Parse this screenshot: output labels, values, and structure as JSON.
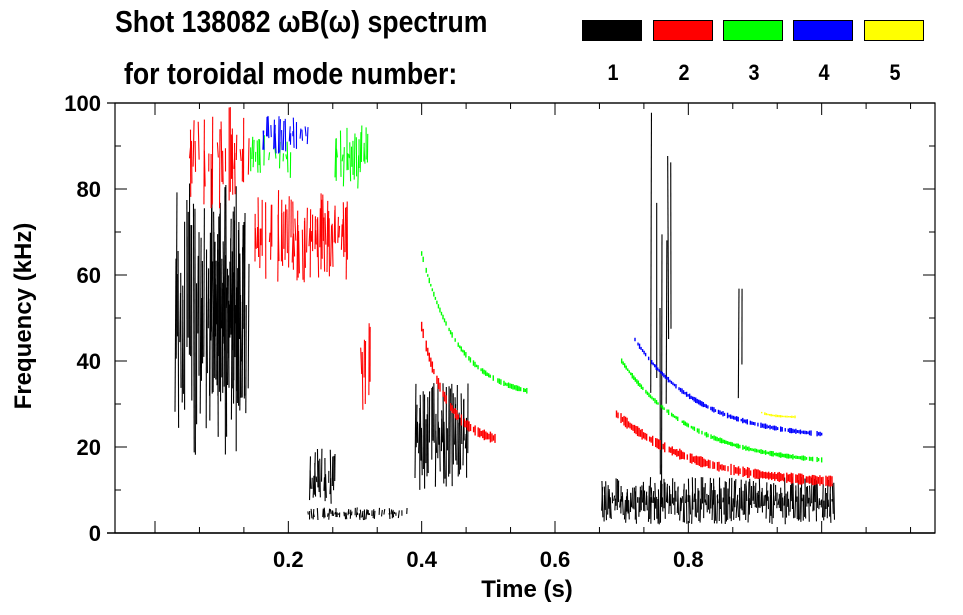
{
  "chart_data": {
    "type": "heatmap",
    "title_line1": "Shot 138082 ωB(ω) spectrum",
    "title_line2": "for toroidal mode number:",
    "xlabel": "Time (s)",
    "ylabel": "Frequency (kHz)",
    "xlim": [
      -0.06,
      1.17
    ],
    "ylim": [
      0,
      100
    ],
    "xticks": [
      "0.2",
      "0.4",
      "0.6",
      "0.8"
    ],
    "xtick_values": [
      0.2,
      0.4,
      0.6,
      0.8
    ],
    "yticks": [
      "0",
      "20",
      "40",
      "60",
      "80",
      "100"
    ],
    "ytick_values": [
      0,
      20,
      40,
      60,
      80,
      100
    ],
    "legend": [
      {
        "label": "1",
        "color": "#000000"
      },
      {
        "label": "2",
        "color": "#ff0000"
      },
      {
        "label": "3",
        "color": "#00ff00"
      },
      {
        "label": "4",
        "color": "#0000ff"
      },
      {
        "label": "5",
        "color": "#ffff00"
      }
    ],
    "series": [
      {
        "name": "1",
        "color": "#000000",
        "features": [
          {
            "type": "blob",
            "t": [
              0.03,
              0.14
            ],
            "f": [
              18,
              85
            ],
            "density": 0.9
          },
          {
            "type": "blob",
            "t": [
              0.08,
              0.135
            ],
            "f": [
              30,
              75
            ],
            "density": 1.0
          },
          {
            "type": "blob",
            "t": [
              0.23,
              0.38
            ],
            "f": [
              3,
              6
            ],
            "density": 0.6
          },
          {
            "type": "blob",
            "t": [
              0.23,
              0.27
            ],
            "f": [
              5,
              20
            ],
            "density": 0.8
          },
          {
            "type": "blob",
            "t": [
              0.39,
              0.47
            ],
            "f": [
              10,
              35
            ],
            "density": 0.9
          },
          {
            "type": "blob",
            "t": [
              0.67,
              1.02
            ],
            "f": [
              2,
              13
            ],
            "density": 1.0
          },
          {
            "type": "blob",
            "t": [
              0.74,
              0.76
            ],
            "f": [
              0,
              100
            ],
            "density": 0.15
          },
          {
            "type": "blob",
            "t": [
              0.765,
              0.775
            ],
            "f": [
              30,
              100
            ],
            "density": 0.15
          },
          {
            "type": "blob",
            "t": [
              0.875,
              0.885
            ],
            "f": [
              20,
              78
            ],
            "density": 0.3
          }
        ]
      },
      {
        "name": "2",
        "color": "#ff0000",
        "features": [
          {
            "type": "blob",
            "t": [
              0.05,
              0.14
            ],
            "f": [
              75,
              100
            ],
            "density": 0.5
          },
          {
            "type": "blob",
            "t": [
              0.15,
              0.29
            ],
            "f": [
              58,
              80
            ],
            "density": 0.7
          },
          {
            "type": "blob",
            "t": [
              0.31,
              0.33
            ],
            "f": [
              24,
              50
            ],
            "density": 0.7
          },
          {
            "type": "chirp",
            "t": [
              0.4,
              0.51
            ],
            "f": [
              48,
              22
            ],
            "width": 4
          },
          {
            "type": "chirp",
            "t": [
              0.69,
              1.02
            ],
            "f": [
              28,
              12
            ],
            "width": 4
          }
        ]
      },
      {
        "name": "3",
        "color": "#00ff00",
        "features": [
          {
            "type": "blob",
            "t": [
              0.14,
              0.21
            ],
            "f": [
              82,
              93
            ],
            "density": 0.4
          },
          {
            "type": "blob",
            "t": [
              0.27,
              0.32
            ],
            "f": [
              80,
              95
            ],
            "density": 0.8
          },
          {
            "type": "chirp",
            "t": [
              0.4,
              0.56
            ],
            "f": [
              65,
              33
            ],
            "width": 2
          },
          {
            "type": "chirp",
            "t": [
              0.7,
              1.0
            ],
            "f": [
              40,
              17
            ],
            "width": 2
          }
        ]
      },
      {
        "name": "4",
        "color": "#0000ff",
        "features": [
          {
            "type": "blob",
            "t": [
              0.16,
              0.23
            ],
            "f": [
              88,
              97
            ],
            "density": 0.5
          },
          {
            "type": "chirp",
            "t": [
              0.72,
              1.0
            ],
            "f": [
              45,
              23
            ],
            "width": 2
          }
        ]
      },
      {
        "name": "5",
        "color": "#ffff00",
        "features": [
          {
            "type": "chirp",
            "t": [
              0.91,
              0.96
            ],
            "f": [
              28,
              27
            ],
            "width": 1
          }
        ]
      }
    ]
  }
}
